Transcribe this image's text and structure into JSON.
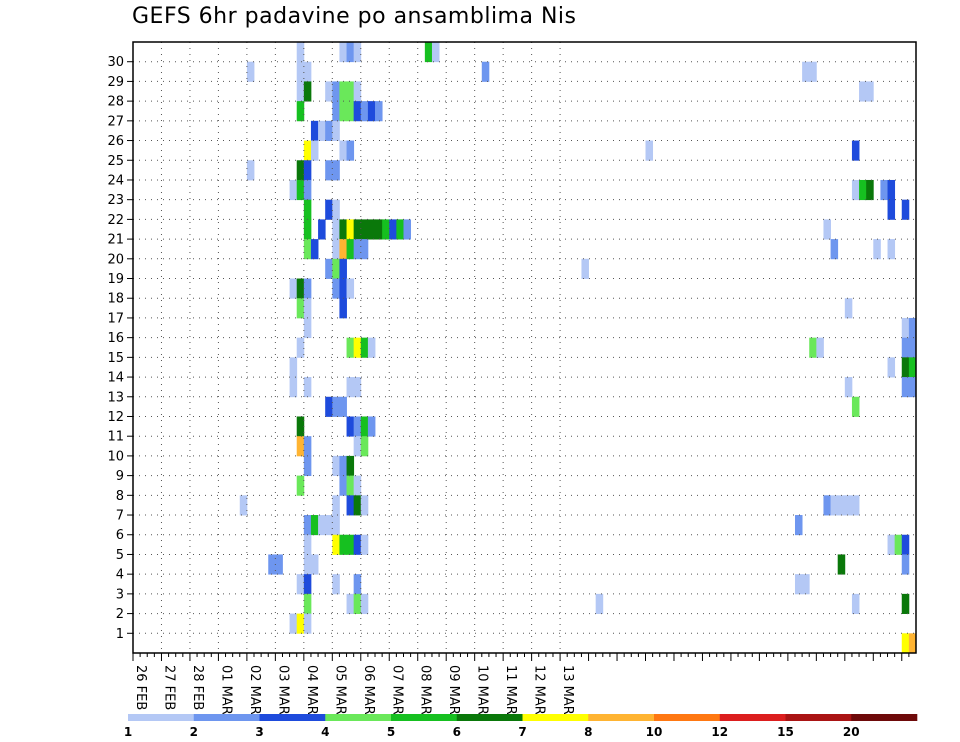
{
  "title": "GEFS 6hr padavine po ansamblima Nis",
  "chart_data": {
    "type": "heatmap",
    "title": "GEFS 6hr padavine po ansamblima Nis",
    "x_tick_labels": [
      "26 FEB",
      "27 FEB",
      "28 FEB",
      "01 MAR",
      "02 MAR",
      "03 MAR",
      "04 MAR",
      "05 MAR",
      "06 MAR",
      "07 MAR",
      "08 MAR",
      "09 MAR",
      "10 MAR",
      "11 MAR",
      "12 MAR",
      "13 MAR"
    ],
    "y_tick_labels": [
      "1",
      "2",
      "3",
      "4",
      "5",
      "6",
      "7",
      "8",
      "9",
      "10",
      "11",
      "12",
      "13",
      "14",
      "15",
      "16",
      "17",
      "18",
      "19",
      "20",
      "21",
      "22",
      "23",
      "24",
      "25",
      "26",
      "27",
      "28",
      "29",
      "30"
    ],
    "xlabel": "",
    "ylabel": "",
    "time_step_hours": 6,
    "grid": true,
    "colorbar": {
      "levels": [
        "1",
        "2",
        "3",
        "4",
        "5",
        "6",
        "7",
        "8",
        "10",
        "12",
        "15",
        "20"
      ],
      "colors": [
        "#b4c8f5",
        "#6e96ef",
        "#1e4bdc",
        "#6ae85a",
        "#16c020",
        "#0a780a",
        "#ffff00",
        "#ffb432",
        "#ff7812",
        "#dc1e1e",
        "#aa1414",
        "#6e0a0a"
      ]
    },
    "cells": [
      [
        30,
        23,
        0
      ],
      [
        30,
        29,
        0
      ],
      [
        30,
        30,
        1
      ],
      [
        30,
        31,
        0
      ],
      [
        30,
        41,
        4
      ],
      [
        30,
        42,
        0
      ],
      [
        29,
        16,
        0
      ],
      [
        29,
        23,
        0
      ],
      [
        29,
        24,
        0
      ],
      [
        29,
        49,
        1
      ],
      [
        29,
        94,
        0
      ],
      [
        29,
        95,
        0
      ],
      [
        28,
        23,
        0
      ],
      [
        28,
        24,
        5
      ],
      [
        28,
        27,
        0
      ],
      [
        28,
        28,
        1
      ],
      [
        28,
        29,
        3
      ],
      [
        28,
        30,
        3
      ],
      [
        28,
        31,
        0
      ],
      [
        28,
        102,
        0
      ],
      [
        28,
        103,
        0
      ],
      [
        27,
        23,
        4
      ],
      [
        27,
        28,
        1
      ],
      [
        27,
        29,
        3
      ],
      [
        27,
        30,
        3
      ],
      [
        27,
        31,
        2
      ],
      [
        27,
        32,
        1
      ],
      [
        27,
        33,
        2
      ],
      [
        27,
        34,
        1
      ],
      [
        26,
        25,
        2
      ],
      [
        26,
        26,
        0
      ],
      [
        26,
        27,
        1
      ],
      [
        26,
        28,
        0
      ],
      [
        25,
        24,
        6
      ],
      [
        25,
        25,
        0
      ],
      [
        25,
        29,
        0
      ],
      [
        25,
        30,
        1
      ],
      [
        25,
        72,
        0
      ],
      [
        25,
        101,
        2
      ],
      [
        24,
        16,
        0
      ],
      [
        24,
        23,
        5
      ],
      [
        24,
        24,
        2
      ],
      [
        24,
        27,
        1
      ],
      [
        24,
        28,
        1
      ],
      [
        23,
        22,
        0
      ],
      [
        23,
        23,
        4
      ],
      [
        23,
        24,
        1
      ],
      [
        23,
        101,
        0
      ],
      [
        23,
        102,
        4
      ],
      [
        23,
        103,
        5
      ],
      [
        23,
        105,
        1
      ],
      [
        23,
        106,
        2
      ],
      [
        22,
        24,
        4
      ],
      [
        22,
        27,
        2
      ],
      [
        22,
        28,
        0
      ],
      [
        22,
        106,
        2
      ],
      [
        22,
        108,
        2
      ],
      [
        21,
        24,
        4
      ],
      [
        21,
        26,
        2
      ],
      [
        21,
        28,
        0
      ],
      [
        21,
        29,
        5
      ],
      [
        21,
        30,
        6
      ],
      [
        21,
        31,
        5
      ],
      [
        21,
        32,
        5
      ],
      [
        21,
        33,
        5
      ],
      [
        21,
        34,
        5
      ],
      [
        21,
        35,
        4
      ],
      [
        21,
        36,
        2
      ],
      [
        21,
        37,
        4
      ],
      [
        21,
        38,
        1
      ],
      [
        21,
        97,
        0
      ],
      [
        20,
        24,
        3
      ],
      [
        20,
        25,
        2
      ],
      [
        20,
        28,
        0
      ],
      [
        20,
        29,
        7
      ],
      [
        20,
        30,
        4
      ],
      [
        20,
        31,
        1
      ],
      [
        20,
        32,
        1
      ],
      [
        20,
        98,
        1
      ],
      [
        20,
        104,
        0
      ],
      [
        20,
        106,
        0
      ],
      [
        19,
        27,
        1
      ],
      [
        19,
        28,
        3
      ],
      [
        19,
        29,
        2
      ],
      [
        19,
        63,
        0
      ],
      [
        18,
        22,
        0
      ],
      [
        18,
        23,
        5
      ],
      [
        18,
        24,
        1
      ],
      [
        18,
        28,
        1
      ],
      [
        18,
        29,
        2
      ],
      [
        18,
        30,
        0
      ],
      [
        17,
        23,
        3
      ],
      [
        17,
        24,
        0
      ],
      [
        17,
        29,
        2
      ],
      [
        17,
        100,
        0
      ],
      [
        16,
        24,
        0
      ],
      [
        16,
        108,
        0
      ],
      [
        16,
        109,
        1
      ],
      [
        15,
        23,
        0
      ],
      [
        15,
        30,
        3
      ],
      [
        15,
        31,
        6
      ],
      [
        15,
        32,
        4
      ],
      [
        15,
        33,
        0
      ],
      [
        15,
        95,
        3
      ],
      [
        15,
        96,
        0
      ],
      [
        15,
        108,
        1
      ],
      [
        15,
        109,
        1
      ],
      [
        14,
        22,
        0
      ],
      [
        14,
        106,
        0
      ],
      [
        14,
        108,
        5
      ],
      [
        14,
        109,
        4
      ],
      [
        13,
        22,
        0
      ],
      [
        13,
        24,
        0
      ],
      [
        13,
        30,
        0
      ],
      [
        13,
        31,
        0
      ],
      [
        13,
        100,
        0
      ],
      [
        13,
        108,
        1
      ],
      [
        13,
        109,
        1
      ],
      [
        12,
        27,
        2
      ],
      [
        12,
        28,
        1
      ],
      [
        12,
        29,
        1
      ],
      [
        12,
        101,
        3
      ],
      [
        11,
        23,
        5
      ],
      [
        11,
        30,
        2
      ],
      [
        11,
        31,
        1
      ],
      [
        11,
        32,
        4
      ],
      [
        11,
        33,
        1
      ],
      [
        10,
        23,
        7
      ],
      [
        10,
        24,
        1
      ],
      [
        10,
        31,
        0
      ],
      [
        10,
        32,
        3
      ],
      [
        9,
        24,
        1
      ],
      [
        9,
        28,
        0
      ],
      [
        9,
        29,
        1
      ],
      [
        9,
        30,
        5
      ],
      [
        8,
        23,
        3
      ],
      [
        8,
        29,
        1
      ],
      [
        8,
        30,
        3
      ],
      [
        8,
        31,
        0
      ],
      [
        7,
        15,
        0
      ],
      [
        7,
        28,
        0
      ],
      [
        7,
        30,
        2
      ],
      [
        7,
        31,
        5
      ],
      [
        7,
        32,
        0
      ],
      [
        7,
        97,
        1
      ],
      [
        7,
        98,
        0
      ],
      [
        7,
        99,
        0
      ],
      [
        7,
        100,
        0
      ],
      [
        7,
        101,
        0
      ],
      [
        6,
        24,
        1
      ],
      [
        6,
        25,
        4
      ],
      [
        6,
        26,
        0
      ],
      [
        6,
        27,
        0
      ],
      [
        6,
        28,
        0
      ],
      [
        6,
        93,
        1
      ],
      [
        5,
        24,
        0
      ],
      [
        5,
        28,
        6
      ],
      [
        5,
        29,
        4
      ],
      [
        5,
        30,
        4
      ],
      [
        5,
        31,
        2
      ],
      [
        5,
        32,
        0
      ],
      [
        5,
        106,
        0
      ],
      [
        5,
        107,
        3
      ],
      [
        5,
        108,
        2
      ],
      [
        4,
        19,
        1
      ],
      [
        4,
        20,
        1
      ],
      [
        4,
        24,
        0
      ],
      [
        4,
        25,
        0
      ],
      [
        4,
        99,
        5
      ],
      [
        4,
        108,
        1
      ],
      [
        3,
        23,
        0
      ],
      [
        3,
        24,
        2
      ],
      [
        3,
        28,
        0
      ],
      [
        3,
        31,
        1
      ],
      [
        3,
        93,
        0
      ],
      [
        3,
        94,
        0
      ],
      [
        2,
        24,
        3
      ],
      [
        2,
        30,
        0
      ],
      [
        2,
        31,
        3
      ],
      [
        2,
        32,
        0
      ],
      [
        2,
        65,
        0
      ],
      [
        2,
        101,
        0
      ],
      [
        2,
        108,
        5
      ],
      [
        1,
        22,
        0
      ],
      [
        1,
        23,
        6
      ],
      [
        1,
        24,
        0
      ],
      [
        0,
        108,
        6
      ],
      [
        0,
        109,
        7
      ]
    ]
  }
}
